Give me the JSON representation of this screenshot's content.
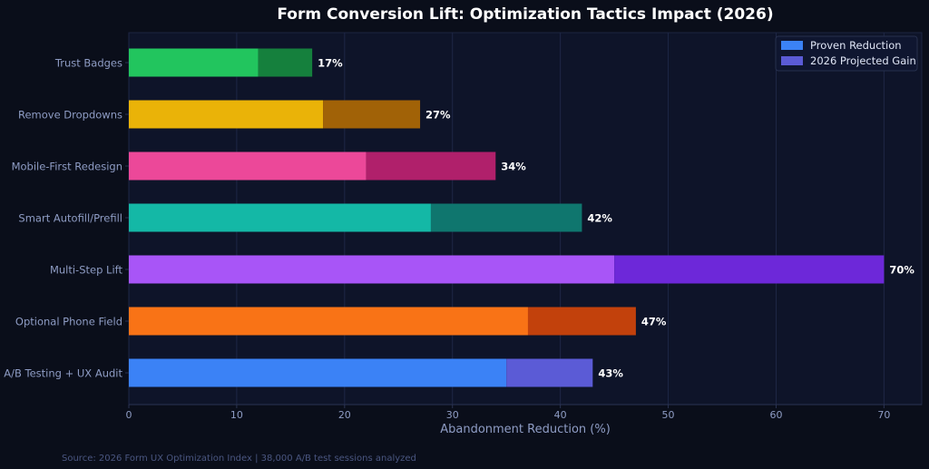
{
  "chart_data": {
    "type": "bar",
    "orientation": "horizontal",
    "stacked": true,
    "title": "Form Conversion Lift: Optimization Tactics Impact (2026)",
    "xlabel": "Abandonment Reduction (%)",
    "ylabel": "",
    "xlim": [
      0,
      73.5
    ],
    "x_ticks": [
      0,
      10,
      20,
      30,
      40,
      50,
      60,
      70
    ],
    "grid": "vertical",
    "legend_position": "top-right",
    "categories": [
      "A/B Testing + UX Audit",
      "Optional Phone Field",
      "Multi-Step Lift",
      "Smart Autofill/Prefill",
      "Mobile-First Redesign",
      "Remove Dropdowns",
      "Trust Badges"
    ],
    "series": [
      {
        "name": "Proven Reduction",
        "values": [
          35,
          37,
          45,
          28,
          22,
          18,
          12
        ]
      },
      {
        "name": "2026 Projected Gain",
        "values": [
          8,
          10,
          25,
          14,
          12,
          9,
          5
        ]
      }
    ],
    "totals": [
      43,
      47,
      70,
      42,
      34,
      27,
      17
    ],
    "total_labels": [
      "43%",
      "47%",
      "70%",
      "42%",
      "34%",
      "27%",
      "17%"
    ],
    "colors": {
      "base": [
        "#3b82f6",
        "#f97316",
        "#a855f7",
        "#14b8a6",
        "#ec4899",
        "#eab308",
        "#22c55e"
      ],
      "gain": [
        "#5b5bd6",
        "#c2410c",
        "#6d28d9",
        "#0f766e",
        "#b0206b",
        "#a16207",
        "#15803d"
      ],
      "legend": [
        "#3b82f6",
        "#5b5bd6"
      ]
    }
  },
  "footer": {
    "source": "Source: 2026 Form UX Optimization Index | 38,000 A/B test sessions analyzed"
  }
}
